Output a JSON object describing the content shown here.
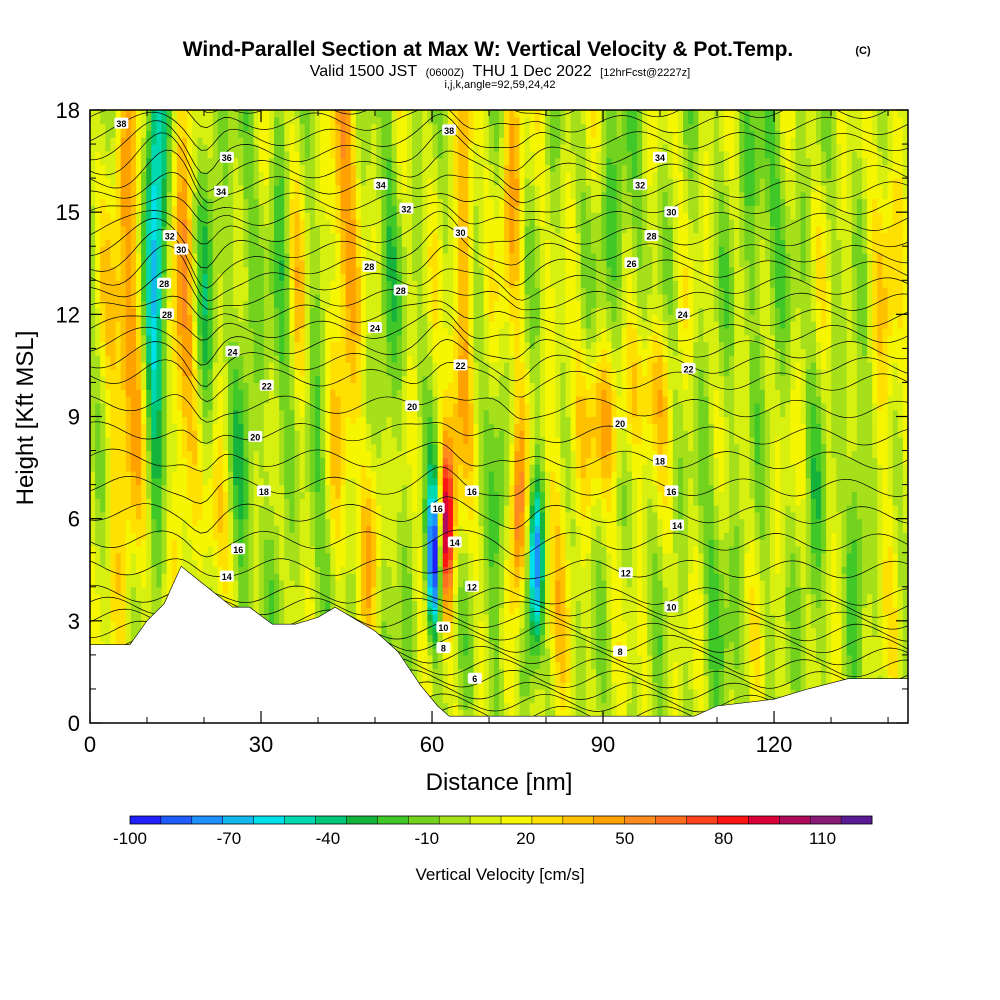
{
  "chart_data": {
    "type": "heatmap",
    "title": "Wind-Parallel Section at Max W: Vertical Velocity & Pot.Temp.",
    "title_mark": "(C)",
    "subtitle": {
      "valid": "Valid 1500 JST",
      "utc": "(0600Z)",
      "date": "THU 1 Dec 2022",
      "fcst": "[12hrFcst@2227z]"
    },
    "indices": "i,j,k,angle=92,59,24,42",
    "xlabel": "Distance [nm]",
    "ylabel": "Height [Kft MSL]",
    "xlim": [
      0,
      143.5
    ],
    "ylim": [
      0,
      18
    ],
    "xticks": [
      "0",
      "30",
      "60",
      "90",
      "120"
    ],
    "yticks": [
      "0",
      "3",
      "6",
      "9",
      "12",
      "15",
      "18"
    ],
    "colorbar": {
      "label": "Vertical Velocity [cm/s]",
      "ticks": [
        "-100",
        "-70",
        "-40",
        "-10",
        "20",
        "50",
        "80",
        "110"
      ],
      "min": -100,
      "max": 125,
      "colors": [
        "#1f1fff",
        "#1e5cff",
        "#1e90ff",
        "#12b8ee",
        "#00e0e8",
        "#00d8b0",
        "#00c878",
        "#15b33c",
        "#40c828",
        "#72d21e",
        "#a6e01a",
        "#d8f010",
        "#f6f600",
        "#ffe000",
        "#ffc000",
        "#ffa200",
        "#ff8a1e",
        "#ff6e1e",
        "#ff421e",
        "#ff1414",
        "#d80036",
        "#b00a5a",
        "#8a1a78",
        "#5a1a96"
      ]
    },
    "terrain_kft": [
      [
        0,
        2.3
      ],
      [
        7,
        2.3
      ],
      [
        10,
        3.0
      ],
      [
        13,
        3.5
      ],
      [
        16,
        4.6
      ],
      [
        19,
        4.2
      ],
      [
        22,
        3.8
      ],
      [
        25,
        3.4
      ],
      [
        28,
        3.4
      ],
      [
        32,
        2.9
      ],
      [
        36,
        2.9
      ],
      [
        40,
        3.1
      ],
      [
        43,
        3.4
      ],
      [
        46,
        3.1
      ],
      [
        50,
        2.7
      ],
      [
        54,
        2.1
      ],
      [
        56,
        1.6
      ],
      [
        58,
        1.1
      ],
      [
        61,
        0.5
      ],
      [
        63,
        0.2
      ],
      [
        80,
        0.2
      ],
      [
        100,
        0.2
      ],
      [
        106,
        0.2
      ],
      [
        110,
        0.5
      ],
      [
        120,
        0.7
      ],
      [
        126,
        1.0
      ],
      [
        133,
        1.3
      ],
      [
        143.5,
        1.3
      ]
    ],
    "contour_labels": [
      {
        "x": 5.5,
        "y": 17.6,
        "text": "38"
      },
      {
        "x": 24,
        "y": 16.6,
        "text": "36"
      },
      {
        "x": 23,
        "y": 15.6,
        "text": "34"
      },
      {
        "x": 14,
        "y": 14.3,
        "text": "32"
      },
      {
        "x": 16,
        "y": 13.9,
        "text": "30"
      },
      {
        "x": 13,
        "y": 12.9,
        "text": "28"
      },
      {
        "x": 13.5,
        "y": 12.0,
        "text": "28"
      },
      {
        "x": 25,
        "y": 10.9,
        "text": "24"
      },
      {
        "x": 31,
        "y": 9.9,
        "text": "22"
      },
      {
        "x": 29,
        "y": 8.4,
        "text": "20"
      },
      {
        "x": 30.5,
        "y": 6.8,
        "text": "18"
      },
      {
        "x": 26,
        "y": 5.1,
        "text": "16"
      },
      {
        "x": 24,
        "y": 4.3,
        "text": "14"
      },
      {
        "x": 63,
        "y": 17.4,
        "text": "38"
      },
      {
        "x": 51,
        "y": 15.8,
        "text": "34"
      },
      {
        "x": 55.5,
        "y": 15.1,
        "text": "32"
      },
      {
        "x": 65,
        "y": 14.4,
        "text": "30"
      },
      {
        "x": 49,
        "y": 13.4,
        "text": "28"
      },
      {
        "x": 54.5,
        "y": 12.7,
        "text": "28"
      },
      {
        "x": 50,
        "y": 11.6,
        "text": "24"
      },
      {
        "x": 65,
        "y": 10.5,
        "text": "22"
      },
      {
        "x": 56.5,
        "y": 9.3,
        "text": "20"
      },
      {
        "x": 67,
        "y": 6.8,
        "text": "16"
      },
      {
        "x": 61,
        "y": 6.3,
        "text": "16"
      },
      {
        "x": 64,
        "y": 5.3,
        "text": "14"
      },
      {
        "x": 67,
        "y": 4.0,
        "text": "12"
      },
      {
        "x": 62,
        "y": 2.8,
        "text": "10"
      },
      {
        "x": 62,
        "y": 2.2,
        "text": "8"
      },
      {
        "x": 67.5,
        "y": 1.3,
        "text": "6"
      },
      {
        "x": 100,
        "y": 16.6,
        "text": "34"
      },
      {
        "x": 96.5,
        "y": 15.8,
        "text": "32"
      },
      {
        "x": 102,
        "y": 15.0,
        "text": "30"
      },
      {
        "x": 98.5,
        "y": 14.3,
        "text": "28"
      },
      {
        "x": 95,
        "y": 13.5,
        "text": "26"
      },
      {
        "x": 104,
        "y": 12.0,
        "text": "24"
      },
      {
        "x": 105,
        "y": 10.4,
        "text": "22"
      },
      {
        "x": 93,
        "y": 8.8,
        "text": "20"
      },
      {
        "x": 100,
        "y": 7.7,
        "text": "18"
      },
      {
        "x": 102,
        "y": 6.8,
        "text": "16"
      },
      {
        "x": 103,
        "y": 5.8,
        "text": "14"
      },
      {
        "x": 94,
        "y": 4.4,
        "text": "12"
      },
      {
        "x": 102,
        "y": 3.4,
        "text": "10"
      },
      {
        "x": 93,
        "y": 2.1,
        "text": "8"
      }
    ]
  }
}
